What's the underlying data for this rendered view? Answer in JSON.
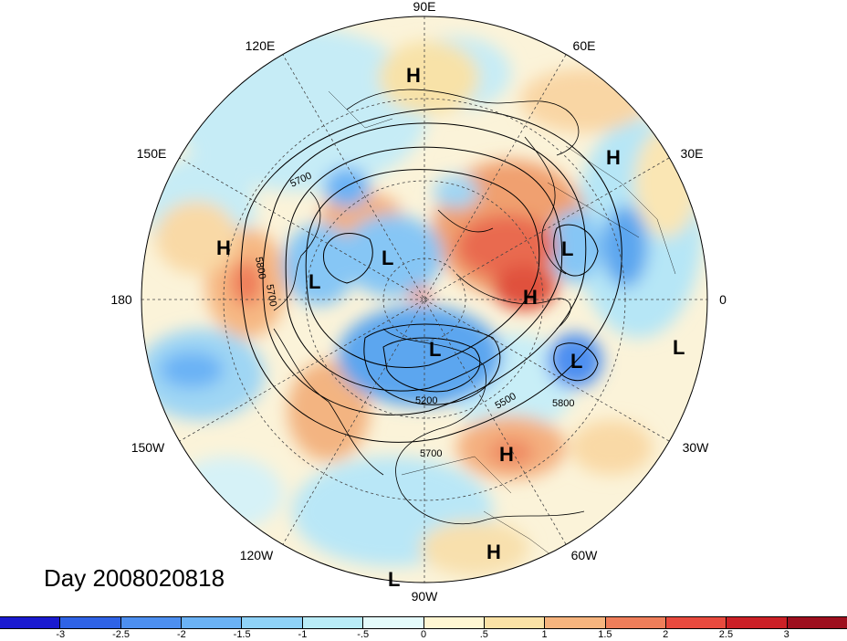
{
  "title": "Day 2008020818",
  "longitude_labels": [
    "90E",
    "60E",
    "30E",
    "0",
    "30W",
    "60W",
    "90W",
    "120W",
    "150W",
    "180",
    "150E",
    "120E"
  ],
  "contour_labels": [
    "5700",
    "5800",
    "5700",
    "5200",
    "5500",
    "5800",
    "5700"
  ],
  "pressure_centers": [
    {
      "type": "H"
    },
    {
      "type": "H"
    },
    {
      "type": "H"
    },
    {
      "type": "L"
    },
    {
      "type": "L"
    },
    {
      "type": "L"
    },
    {
      "type": "H"
    },
    {
      "type": "L"
    },
    {
      "type": "L"
    },
    {
      "type": "L"
    },
    {
      "type": "H"
    },
    {
      "type": "H"
    },
    {
      "type": "L"
    }
  ],
  "colorbar": {
    "tick_labels": [
      "-3",
      "-2.5",
      "-2",
      "-1.5",
      "-1",
      "-.5",
      "0",
      ".5",
      "1",
      "1.5",
      "2",
      "2.5",
      "3"
    ],
    "colors": [
      "#1a1ad0",
      "#2f63e6",
      "#4d8ff0",
      "#6bb2f5",
      "#8fd2f7",
      "#b9ecf7",
      "#e4fbfb",
      "#fff6d2",
      "#fbe2a6",
      "#f6b47e",
      "#ef7e5a",
      "#e84a3e",
      "#cc2026",
      "#9e0f1e"
    ]
  },
  "colors": {
    "background_fill": "#fbf3d9",
    "neutral": "#e4fbfb"
  }
}
